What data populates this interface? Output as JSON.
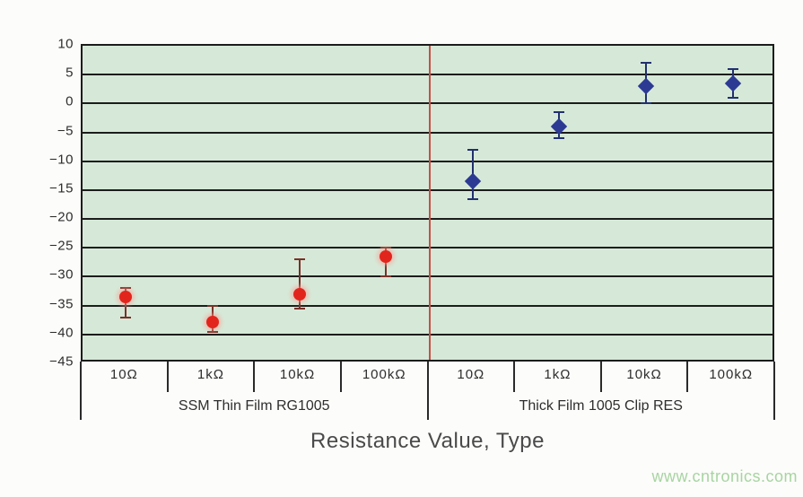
{
  "watermark": "www.cntronics.com",
  "chart_data": {
    "type": "scatter",
    "title": "",
    "xlabel": "Resistance Value, Type",
    "ylabel": "",
    "ylim": [
      -45,
      10
    ],
    "grid": true,
    "legend": "none",
    "plot_bg_color": "#d6e9d8",
    "grid_color": "#1c1c1c",
    "divider_color": "#c94f44",
    "yticks": [
      10,
      5,
      0,
      -5,
      -10,
      -15,
      -20,
      -25,
      -30,
      -35,
      -40,
      -45
    ],
    "ytick_labels": [
      "10",
      "5",
      "0",
      "−5",
      "−10",
      "−15",
      "−20",
      "−25",
      "−30",
      "−35",
      "−40",
      "−45"
    ],
    "groups": [
      {
        "label": "SSM Thin Film RG1005",
        "categories": [
          "10Ω",
          "1kΩ",
          "10kΩ",
          "100kΩ"
        ]
      },
      {
        "label": "Thick Film 1005 Clip RES",
        "categories": [
          "10Ω",
          "1kΩ",
          "10kΩ",
          "100kΩ"
        ]
      }
    ],
    "series": [
      {
        "name": "SSM Thin Film RG1005",
        "marker": "circle",
        "marker_color": "#e2251c",
        "whisker_color": "#7a3028",
        "points": [
          {
            "category": "10Ω",
            "value": -33.5,
            "high": -32,
            "low": -37
          },
          {
            "category": "1kΩ",
            "value": -37.8,
            "high": -35,
            "low": -39.5
          },
          {
            "category": "10kΩ",
            "value": -33,
            "high": -27,
            "low": -35.5
          },
          {
            "category": "100kΩ",
            "value": -26.5,
            "high": -25,
            "low": -30
          }
        ]
      },
      {
        "name": "Thick Film 1005 Clip RES",
        "marker": "diamond",
        "marker_color": "#2c3a94",
        "whisker_color": "#22306e",
        "points": [
          {
            "category": "10Ω",
            "value": -13.5,
            "high": -8,
            "low": -16.5
          },
          {
            "category": "1kΩ",
            "value": -4,
            "high": -1.5,
            "low": -6
          },
          {
            "category": "10kΩ",
            "value": 3,
            "high": 7,
            "low": 0
          },
          {
            "category": "100kΩ",
            "value": 3.5,
            "high": 6,
            "low": 1
          }
        ]
      }
    ]
  }
}
